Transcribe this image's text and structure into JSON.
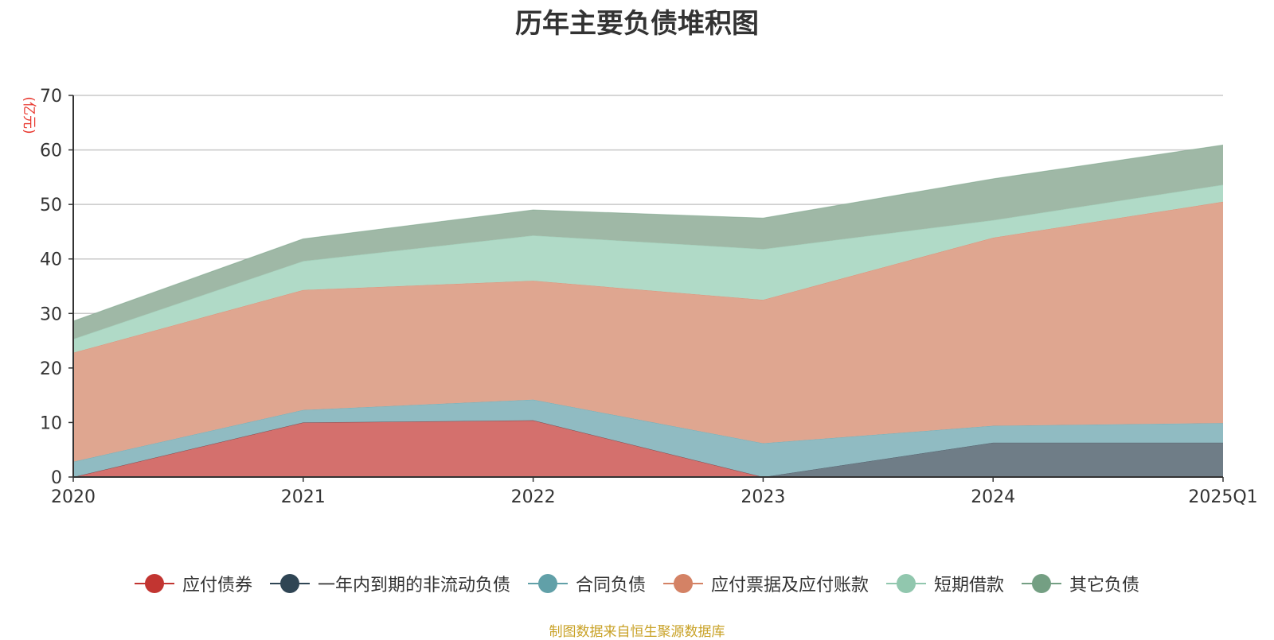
{
  "chart_data": {
    "type": "area",
    "stacked": true,
    "title": "历年主要负债堆积图",
    "ylabel": "(亿元)",
    "xlabel": "",
    "categories": [
      "2020",
      "2021",
      "2022",
      "2023",
      "2024",
      "2025Q1"
    ],
    "ylim": [
      0,
      70
    ],
    "yticks": [
      0,
      10,
      20,
      30,
      40,
      50,
      60,
      70
    ],
    "grid": true,
    "legend_position": "bottom",
    "series": [
      {
        "name": "应付债券",
        "color": "#c23531",
        "fill": "#d4706d",
        "values": [
          0,
          10.0,
          10.4,
          0,
          0,
          0
        ]
      },
      {
        "name": "一年内到期的非流动负债",
        "color": "#2f4554",
        "fill": "#6f7d87",
        "values": [
          0,
          0,
          0,
          0,
          6.3,
          6.3
        ]
      },
      {
        "name": "合同负债",
        "color": "#61a0a8",
        "fill": "#90bbc2",
        "values": [
          2.8,
          2.3,
          3.8,
          6.2,
          3.1,
          3.6
        ]
      },
      {
        "name": "应付票据及应付账款",
        "color": "#d48265",
        "fill": "#dfa690",
        "values": [
          20.0,
          22.0,
          21.8,
          26.3,
          34.5,
          40.6
        ]
      },
      {
        "name": "短期借款",
        "color": "#91c7ae",
        "fill": "#b0dac7",
        "values": [
          2.5,
          5.3,
          8.3,
          9.3,
          3.2,
          3.1
        ]
      },
      {
        "name": "其它负债",
        "color": "#749f83",
        "fill": "#9fb8a6",
        "values": [
          3.3,
          4.1,
          4.7,
          5.7,
          7.6,
          7.3
        ]
      }
    ]
  },
  "source_note": "制图数据来自恒生聚源数据库",
  "source_color": "#c9a227"
}
